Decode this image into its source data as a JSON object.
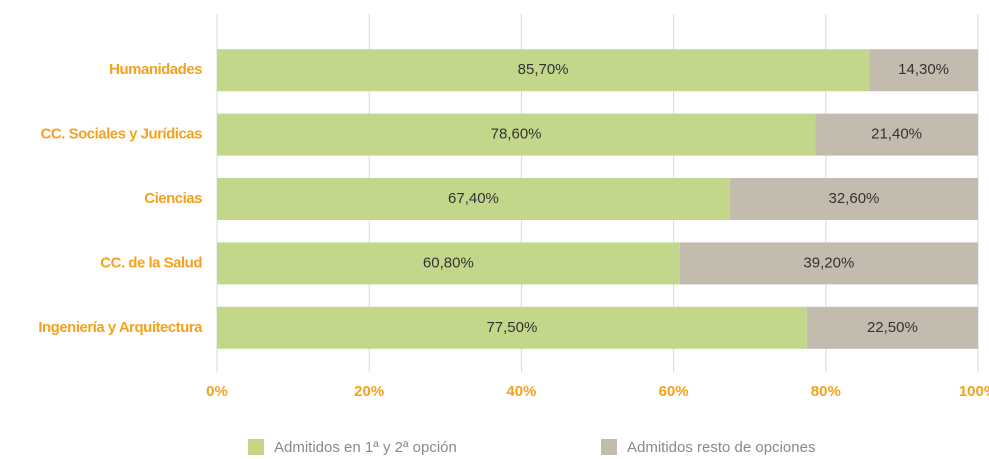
{
  "chart_data": {
    "type": "bar",
    "orientation": "horizontal",
    "stacked": true,
    "categories": [
      "Humanidades",
      "CC. Sociales y Jurídicas",
      "Ciencias",
      "CC. de la Salud",
      "Ingeniería y Arquitectura"
    ],
    "series": [
      {
        "name": "Admitidos en 1ª y 2ª opción",
        "color": "#c3d78a",
        "values": [
          85.7,
          78.6,
          67.4,
          60.8,
          77.5
        ],
        "value_labels": [
          "85,70%",
          "78,60%",
          "67,40%",
          "60,80%",
          "77,50%"
        ]
      },
      {
        "name": "Admitidos resto de opciones",
        "color": "#c4bbaf",
        "values": [
          14.3,
          21.4,
          32.6,
          39.2,
          22.5
        ],
        "value_labels": [
          "14,30%",
          "21,40%",
          "32,60%",
          "39,20%",
          "22,50%"
        ]
      }
    ],
    "xlim": [
      0,
      100
    ],
    "xticks": [
      {
        "value": 0,
        "label": "0%"
      },
      {
        "value": 20,
        "label": "20%"
      },
      {
        "value": 40,
        "label": "40%"
      },
      {
        "value": 60,
        "label": "60%"
      },
      {
        "value": 80,
        "label": "80%"
      },
      {
        "value": 100,
        "label": "100%"
      }
    ],
    "grid": true,
    "legend": "bottom"
  }
}
